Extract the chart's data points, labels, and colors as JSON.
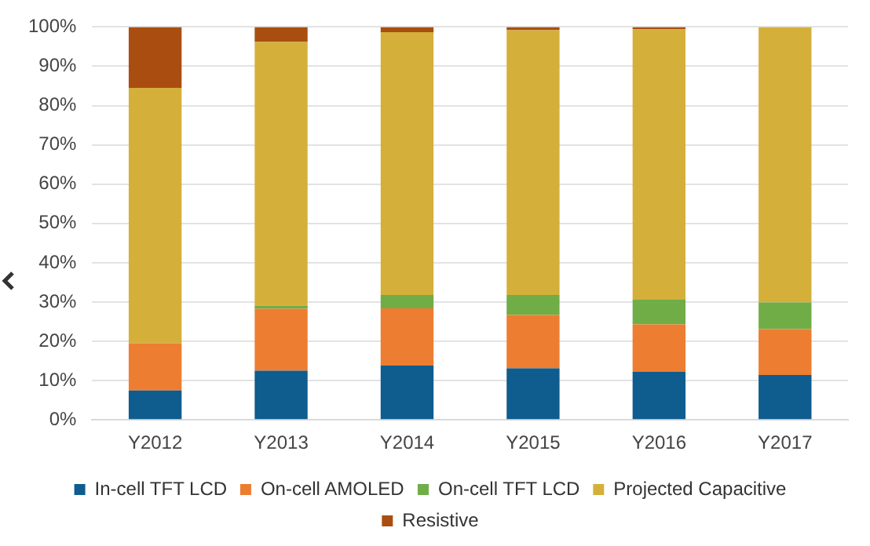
{
  "chart_data": {
    "type": "bar",
    "stacked": true,
    "categories": [
      "Y2012",
      "Y2013",
      "Y2014",
      "Y2015",
      "Y2016",
      "Y2017"
    ],
    "series": [
      {
        "name": "In-cell TFT LCD",
        "color": "#0f5c8e",
        "values": [
          7.5,
          12.5,
          13.8,
          13.1,
          12.2,
          11.4
        ]
      },
      {
        "name": "On-cell AMOLED",
        "color": "#ed7d31",
        "values": [
          12,
          15.8,
          14.6,
          13.6,
          12.1,
          11.7
        ]
      },
      {
        "name": "On-cell TFT LCD",
        "color": "#70ad47",
        "values": [
          0,
          0.8,
          3.4,
          5.1,
          6.3,
          6.8
        ]
      },
      {
        "name": "Projected Capacitive",
        "color": "#d4b03a",
        "values": [
          65,
          67.1,
          66.9,
          67.4,
          68.8,
          70.1
        ]
      },
      {
        "name": "Resistive",
        "color": "#a94e10",
        "values": [
          15.5,
          3.8,
          1.3,
          0.8,
          0.6,
          0
        ]
      }
    ],
    "ylim": [
      0,
      100
    ],
    "yticks": [
      {
        "value": 0,
        "label": "0%"
      },
      {
        "value": 10,
        "label": "10%"
      },
      {
        "value": 20,
        "label": "20%"
      },
      {
        "value": 30,
        "label": "30%"
      },
      {
        "value": 40,
        "label": "40%"
      },
      {
        "value": 50,
        "label": "50%"
      },
      {
        "value": 60,
        "label": "60%"
      },
      {
        "value": 70,
        "label": "70%"
      },
      {
        "value": 80,
        "label": "80%"
      },
      {
        "value": 90,
        "label": "90%"
      },
      {
        "value": 100,
        "label": "100%"
      }
    ],
    "grid": "y",
    "legend": "bottom"
  }
}
